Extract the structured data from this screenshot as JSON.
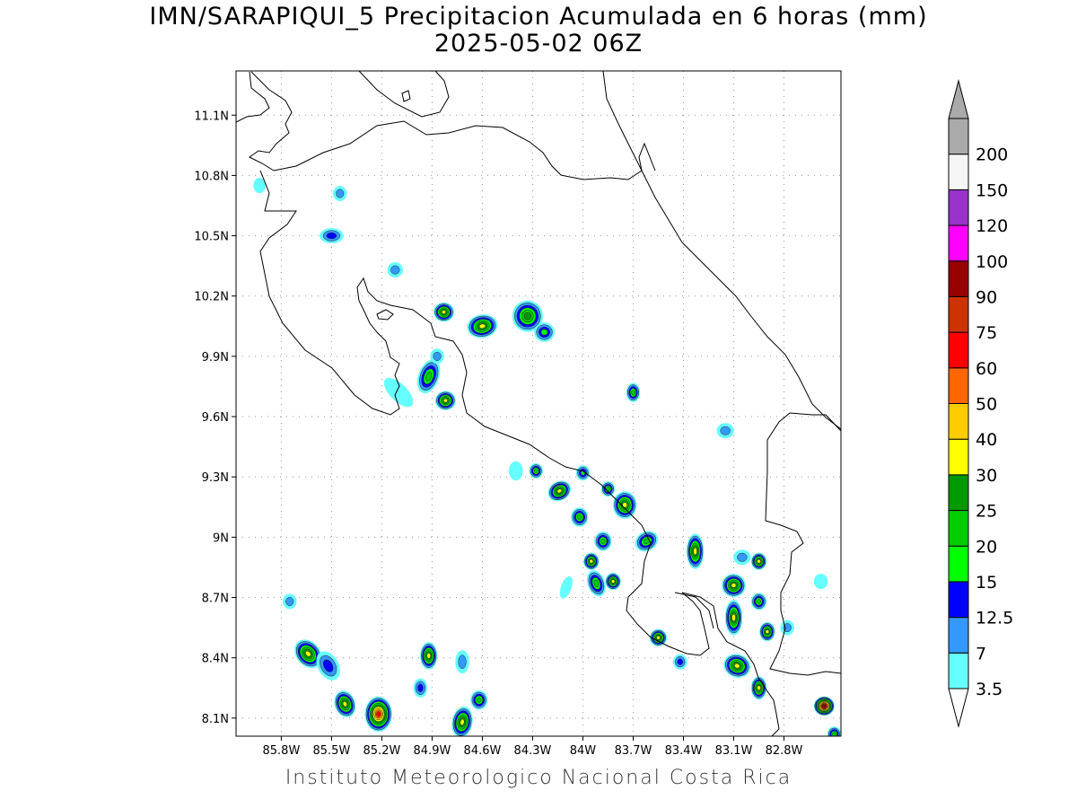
{
  "title": "IMN/SARAPIQUI_5 Precipitacion Acumulada en 6 horas (mm)",
  "subtitle": "2025-05-02 06Z",
  "footer": "Instituto Meteorologico Nacional Costa Rica",
  "map": {
    "lon_range": [
      -86.07,
      -82.46
    ],
    "lat_range": [
      8.01,
      11.32
    ],
    "lon_ticks": [
      {
        "v": -85.8,
        "label": "85.8W"
      },
      {
        "v": -85.5,
        "label": "85.5W"
      },
      {
        "v": -85.2,
        "label": "85.2W"
      },
      {
        "v": -84.9,
        "label": "84.9W"
      },
      {
        "v": -84.6,
        "label": "84.6W"
      },
      {
        "v": -84.3,
        "label": "84.3W"
      },
      {
        "v": -84.0,
        "label": "84W"
      },
      {
        "v": -83.7,
        "label": "83.7W"
      },
      {
        "v": -83.4,
        "label": "83.4W"
      },
      {
        "v": -83.1,
        "label": "83.1W"
      },
      {
        "v": -82.8,
        "label": "82.8W"
      }
    ],
    "lat_ticks": [
      {
        "v": 11.1,
        "label": "11.1N"
      },
      {
        "v": 10.8,
        "label": "10.8N"
      },
      {
        "v": 10.5,
        "label": "10.5N"
      },
      {
        "v": 10.2,
        "label": "10.2N"
      },
      {
        "v": 9.9,
        "label": "9.9N"
      },
      {
        "v": 9.6,
        "label": "9.6N"
      },
      {
        "v": 9.3,
        "label": "9.3N"
      },
      {
        "v": 9.0,
        "label": "9N"
      },
      {
        "v": 8.7,
        "label": "8.7N"
      },
      {
        "v": 8.4,
        "label": "8.4N"
      },
      {
        "v": 8.1,
        "label": "8.1N"
      }
    ],
    "grid": true,
    "features": [
      {
        "name": "costa-rica-coastline"
      },
      {
        "name": "nicaragua-border"
      },
      {
        "name": "panama-border"
      },
      {
        "name": "lake-nicaragua-shore"
      }
    ]
  },
  "colorbar": {
    "levels": [
      {
        "label": "3.5",
        "color": "#66ffff"
      },
      {
        "label": "7",
        "color": "#3399ff"
      },
      {
        "label": "12.5",
        "color": "#0000ff"
      },
      {
        "label": "15",
        "color": "#00ff00"
      },
      {
        "label": "20",
        "color": "#00cc00"
      },
      {
        "label": "25",
        "color": "#009900"
      },
      {
        "label": "30",
        "color": "#ffff00"
      },
      {
        "label": "40",
        "color": "#ffcc00"
      },
      {
        "label": "50",
        "color": "#ff6600"
      },
      {
        "label": "60",
        "color": "#ff0000"
      },
      {
        "label": "75",
        "color": "#cc3300"
      },
      {
        "label": "90",
        "color": "#990000"
      },
      {
        "label": "100",
        "color": "#ff00ff"
      },
      {
        "label": "120",
        "color": "#9933cc"
      },
      {
        "label": "150",
        "color": "#f5f5f5"
      },
      {
        "label": "200",
        "color": "#aaaaaa"
      }
    ],
    "below_color": "#ffffff",
    "above_color": "#aaaaaa"
  },
  "precip_cells": [
    {
      "lon": -85.22,
      "lat": 8.12,
      "rx": 0.06,
      "ry": 0.07,
      "rot": 0,
      "value": 60
    },
    {
      "lon": -85.42,
      "lat": 8.17,
      "rx": 0.04,
      "ry": 0.05,
      "rot": -20,
      "value": 30
    },
    {
      "lon": -85.64,
      "lat": 8.42,
      "rx": 0.05,
      "ry": 0.06,
      "rot": -40,
      "value": 30
    },
    {
      "lon": -85.52,
      "lat": 8.36,
      "rx": 0.04,
      "ry": 0.06,
      "rot": -30,
      "value": 12.5
    },
    {
      "lon": -84.92,
      "lat": 8.41,
      "rx": 0.03,
      "ry": 0.05,
      "rot": 0,
      "value": 30
    },
    {
      "lon": -84.62,
      "lat": 8.19,
      "rx": 0.03,
      "ry": 0.03,
      "rot": 0,
      "value": 20
    },
    {
      "lon": -84.72,
      "lat": 8.08,
      "rx": 0.04,
      "ry": 0.06,
      "rot": 10,
      "value": 30
    },
    {
      "lon": -84.82,
      "lat": 9.68,
      "rx": 0.04,
      "ry": 0.03,
      "rot": 0,
      "value": 30
    },
    {
      "lon": -84.92,
      "lat": 9.8,
      "rx": 0.04,
      "ry": 0.07,
      "rot": 20,
      "value": 20
    },
    {
      "lon": -84.83,
      "lat": 10.12,
      "rx": 0.04,
      "ry": 0.03,
      "rot": 0,
      "value": 30
    },
    {
      "lon": -84.6,
      "lat": 10.05,
      "rx": 0.07,
      "ry": 0.04,
      "rot": -10,
      "value": 30
    },
    {
      "lon": -84.33,
      "lat": 10.1,
      "rx": 0.07,
      "ry": 0.06,
      "rot": -10,
      "value": 25
    },
    {
      "lon": -84.23,
      "lat": 10.02,
      "rx": 0.04,
      "ry": 0.03,
      "rot": 0,
      "value": 15
    },
    {
      "lon": -85.1,
      "lat": 9.72,
      "rx": 0.09,
      "ry": 0.025,
      "rot": 45,
      "value": 3.5
    },
    {
      "lon": -85.5,
      "lat": 10.5,
      "rx": 0.05,
      "ry": 0.02,
      "rot": 0,
      "value": 12.5
    },
    {
      "lon": -85.45,
      "lat": 10.71,
      "rx": 0.02,
      "ry": 0.02,
      "rot": 0,
      "value": 7
    },
    {
      "lon": -85.93,
      "lat": 10.75,
      "rx": 0.015,
      "ry": 0.02,
      "rot": 0,
      "value": 3.5
    },
    {
      "lon": -85.12,
      "lat": 10.33,
      "rx": 0.025,
      "ry": 0.02,
      "rot": 0,
      "value": 7
    },
    {
      "lon": -84.87,
      "lat": 9.9,
      "rx": 0.02,
      "ry": 0.02,
      "rot": 0,
      "value": 7
    },
    {
      "lon": -84.14,
      "lat": 9.23,
      "rx": 0.05,
      "ry": 0.03,
      "rot": -30,
      "value": 30
    },
    {
      "lon": -84.28,
      "lat": 9.33,
      "rx": 0.02,
      "ry": 0.02,
      "rot": 0,
      "value": 20
    },
    {
      "lon": -84.02,
      "lat": 9.1,
      "rx": 0.03,
      "ry": 0.03,
      "rot": 0,
      "value": 20
    },
    {
      "lon": -83.88,
      "lat": 8.98,
      "rx": 0.03,
      "ry": 0.03,
      "rot": 0,
      "value": 20
    },
    {
      "lon": -83.75,
      "lat": 9.16,
      "rx": 0.05,
      "ry": 0.05,
      "rot": 0,
      "value": 30
    },
    {
      "lon": -84.0,
      "lat": 9.32,
      "rx": 0.02,
      "ry": 0.02,
      "rot": 0,
      "value": 15
    },
    {
      "lon": -83.85,
      "lat": 9.24,
      "rx": 0.02,
      "ry": 0.02,
      "rot": 0,
      "value": 20
    },
    {
      "lon": -83.95,
      "lat": 8.88,
      "rx": 0.025,
      "ry": 0.025,
      "rot": 0,
      "value": 30
    },
    {
      "lon": -83.82,
      "lat": 8.78,
      "rx": 0.025,
      "ry": 0.025,
      "rot": 0,
      "value": 30
    },
    {
      "lon": -83.92,
      "lat": 8.77,
      "rx": 0.03,
      "ry": 0.05,
      "rot": -20,
      "value": 20
    },
    {
      "lon": -83.62,
      "lat": 8.98,
      "rx": 0.05,
      "ry": 0.03,
      "rot": -30,
      "value": 20
    },
    {
      "lon": -83.33,
      "lat": 8.93,
      "rx": 0.03,
      "ry": 0.07,
      "rot": 0,
      "value": 30
    },
    {
      "lon": -83.1,
      "lat": 8.76,
      "rx": 0.05,
      "ry": 0.04,
      "rot": 10,
      "value": 30
    },
    {
      "lon": -83.1,
      "lat": 8.6,
      "rx": 0.03,
      "ry": 0.07,
      "rot": 0,
      "value": 30
    },
    {
      "lon": -82.95,
      "lat": 8.88,
      "rx": 0.025,
      "ry": 0.025,
      "rot": 0,
      "value": 30
    },
    {
      "lon": -82.95,
      "lat": 8.68,
      "rx": 0.025,
      "ry": 0.025,
      "rot": 0,
      "value": 20
    },
    {
      "lon": -82.9,
      "lat": 8.53,
      "rx": 0.025,
      "ry": 0.03,
      "rot": 0,
      "value": 30
    },
    {
      "lon": -83.08,
      "lat": 8.36,
      "rx": 0.06,
      "ry": 0.04,
      "rot": 20,
      "value": 30
    },
    {
      "lon": -82.95,
      "lat": 8.25,
      "rx": 0.025,
      "ry": 0.04,
      "rot": 0,
      "value": 30
    },
    {
      "lon": -83.55,
      "lat": 8.5,
      "rx": 0.03,
      "ry": 0.025,
      "rot": 0,
      "value": 30
    },
    {
      "lon": -82.56,
      "lat": 8.16,
      "rx": 0.04,
      "ry": 0.03,
      "rot": 0,
      "value": 90
    },
    {
      "lon": -83.42,
      "lat": 8.38,
      "rx": 0.02,
      "ry": 0.02,
      "rot": 0,
      "value": 12.5
    },
    {
      "lon": -83.7,
      "lat": 9.72,
      "rx": 0.02,
      "ry": 0.03,
      "rot": 0,
      "value": 20
    },
    {
      "lon": -83.15,
      "lat": 9.53,
      "rx": 0.03,
      "ry": 0.02,
      "rot": 0,
      "value": 7
    },
    {
      "lon": -85.75,
      "lat": 8.68,
      "rx": 0.02,
      "ry": 0.02,
      "rot": 0,
      "value": 7
    },
    {
      "lon": -83.05,
      "lat": 8.9,
      "rx": 0.03,
      "ry": 0.02,
      "rot": 0,
      "value": 7
    },
    {
      "lon": -82.58,
      "lat": 8.78,
      "rx": 0.02,
      "ry": 0.02,
      "rot": 0,
      "value": 3.5
    },
    {
      "lon": -84.97,
      "lat": 8.25,
      "rx": 0.02,
      "ry": 0.03,
      "rot": 0,
      "value": 12.5
    },
    {
      "lon": -84.72,
      "lat": 8.38,
      "rx": 0.02,
      "ry": 0.04,
      "rot": 0,
      "value": 7
    },
    {
      "lon": -84.4,
      "lat": 9.33,
      "rx": 0.02,
      "ry": 0.03,
      "rot": 0,
      "value": 3.5
    },
    {
      "lon": -84.1,
      "lat": 8.75,
      "rx": 0.01,
      "ry": 0.04,
      "rot": 20,
      "value": 3.5
    },
    {
      "lon": -82.78,
      "lat": 8.55,
      "rx": 0.02,
      "ry": 0.02,
      "rot": 0,
      "value": 7
    },
    {
      "lon": -82.5,
      "lat": 8.02,
      "rx": 0.02,
      "ry": 0.02,
      "rot": 0,
      "value": 20
    }
  ]
}
